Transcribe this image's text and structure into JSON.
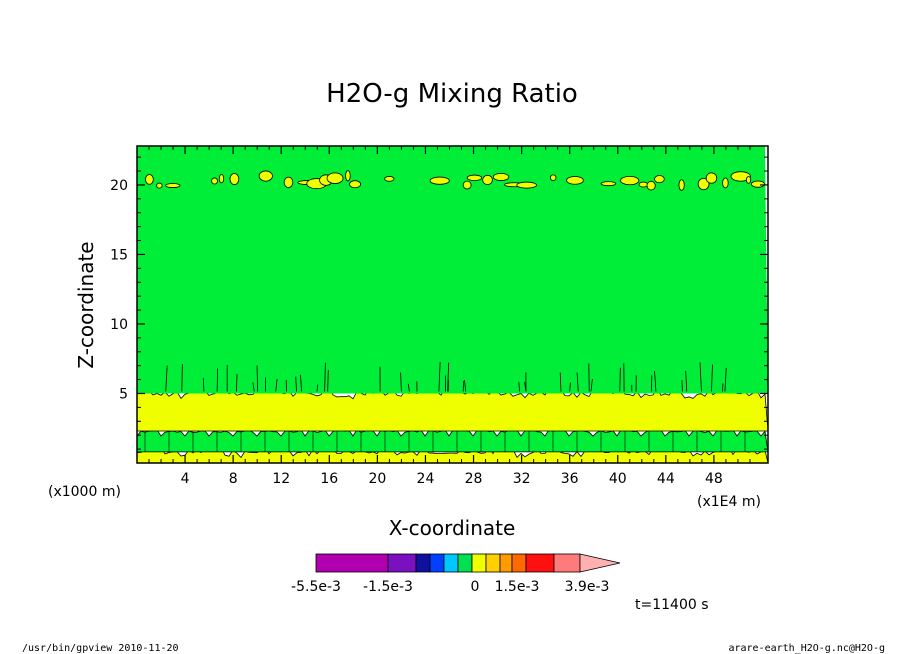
{
  "chart_data": {
    "type": "heatmap",
    "title": "H2O-g Mixing Ratio",
    "xlabel": "X-coordinate",
    "ylabel": "Z-coordinate",
    "x_unit_label": "(x1E4 m)",
    "y_unit_label": "(x1000 m)",
    "xlim": [
      0,
      52.5
    ],
    "ylim": [
      0,
      22.8
    ],
    "x_ticks": [
      4,
      8,
      12,
      16,
      20,
      24,
      28,
      32,
      36,
      40,
      44,
      48
    ],
    "x_tick_labels": [
      "4",
      "8",
      "12",
      "16",
      "20",
      "24",
      "28",
      "32",
      "36",
      "40",
      "44",
      "48"
    ],
    "y_ticks": [
      5,
      10,
      15,
      20
    ],
    "y_tick_labels": [
      "5",
      "10",
      "15",
      "20"
    ],
    "bands": [
      {
        "z_range": [
          0,
          0.8
        ],
        "level": "yellow",
        "edge": "wavy"
      },
      {
        "z_range": [
          0.8,
          2.3
        ],
        "level": "green",
        "edge": "notched"
      },
      {
        "z_range": [
          2.3,
          5.0
        ],
        "level": "yellow",
        "edge": "wavy"
      },
      {
        "z_range": [
          5.0,
          22.8
        ],
        "level": "green",
        "edge": "flat"
      },
      {
        "z_range": [
          19.8,
          21.0
        ],
        "level": "yellow",
        "edge": "blobs"
      }
    ],
    "colorbar": {
      "labels": [
        "-5.5e-3",
        "-1.5e-3",
        "0",
        "1.5e-3",
        "3.9e-3"
      ],
      "colors": [
        "#b000b0",
        "#7a10c0",
        "#1010a0",
        "#0040ff",
        "#00c8ff",
        "#00e050",
        "#f0ff00",
        "#ffd000",
        "#ff9a00",
        "#ff6a00",
        "#ff1010",
        "#ff7a7a",
        "#ffb0b0"
      ]
    },
    "time_label": "t=11400 s"
  },
  "colors": {
    "green": "#00ee38",
    "yellow": "#f0ff00",
    "outline": "#000000"
  },
  "footer": {
    "left": "/usr/bin/gpview   2010-11-20",
    "right": "arare-earth_H2O-g.nc@H2O-g"
  }
}
